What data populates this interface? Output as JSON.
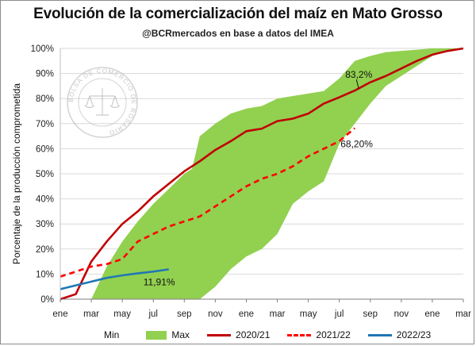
{
  "title": "Evolución de la comercialización del maíz en Mato Grosso",
  "subtitle": "@BCRmercados en base a datos del IMEA",
  "watermark": {
    "text": "BOLSA DE COMERCIO DE ROSARIO",
    "color": "#b5b5b5"
  },
  "chart_data": {
    "type": "area",
    "ylabel": "Porcentaje de la producción comprometida",
    "xlabel": "",
    "x_tick_labels": [
      "ene",
      "mar",
      "may",
      "jul",
      "sep",
      "nov",
      "ene",
      "mar",
      "may",
      "jul",
      "sep",
      "nov",
      "ene",
      "mar"
    ],
    "y_tick_labels": [
      "0%",
      "10%",
      "20%",
      "30%",
      "40%",
      "50%",
      "60%",
      "70%",
      "80%",
      "90%",
      "100%"
    ],
    "ylim": [
      0,
      100
    ],
    "xlim": [
      0,
      26
    ],
    "grid": true,
    "legend_position": "bottom",
    "series": [
      {
        "name": "Min",
        "kind": "area-lower",
        "color": "#ffffff",
        "x": [
          0,
          2,
          3,
          4,
          5,
          6,
          7,
          8,
          8.5,
          9,
          10,
          11,
          12,
          13,
          14,
          15,
          16,
          17,
          18,
          19,
          20,
          21,
          22,
          23,
          24,
          25,
          26
        ],
        "y": [
          0,
          0,
          0,
          0,
          0,
          0,
          0,
          0,
          0,
          0,
          5,
          12,
          17,
          20,
          26,
          38,
          43,
          47,
          62,
          70,
          78,
          85,
          89,
          93,
          97,
          99,
          100
        ]
      },
      {
        "name": "Max",
        "kind": "area-upper",
        "color": "#92d050",
        "x": [
          0,
          2,
          3,
          4,
          5,
          6,
          7,
          8,
          8.5,
          9,
          10,
          11,
          12,
          13,
          14,
          15,
          16,
          17,
          18,
          19,
          20,
          21,
          22,
          23,
          24,
          25,
          26
        ],
        "y": [
          0,
          0,
          13,
          23,
          31,
          38,
          44,
          50,
          52,
          65,
          70,
          74,
          76,
          77,
          80,
          81,
          82,
          83,
          88,
          95,
          97,
          98.5,
          99,
          99.5,
          100,
          100,
          100
        ]
      },
      {
        "name": "2020/21",
        "kind": "line",
        "color": "#c00000",
        "dash": "solid",
        "x": [
          0,
          1,
          2,
          3,
          4,
          5,
          6,
          7,
          8,
          9,
          10,
          11,
          12,
          13,
          14,
          15,
          16,
          17,
          18,
          19,
          20,
          21,
          22,
          23,
          24,
          25,
          26
        ],
        "y": [
          0,
          2,
          15,
          23,
          30,
          35,
          41,
          46,
          51,
          55,
          59.5,
          63,
          67,
          68,
          71,
          72,
          74,
          78,
          80.5,
          83.2,
          86.5,
          89,
          92,
          95,
          97.5,
          99,
          100
        ]
      },
      {
        "name": "2021/22",
        "kind": "line",
        "color": "#ff0000",
        "dash": "dashed",
        "x": [
          0,
          1,
          2,
          3,
          4,
          5,
          6,
          7,
          8,
          9,
          10,
          11,
          12,
          13,
          14,
          15,
          16,
          17,
          18,
          19,
          20,
          21,
          22,
          23,
          24,
          25,
          26
        ],
        "y": [
          9,
          11,
          13,
          14,
          16,
          23,
          26,
          29,
          31,
          33,
          37,
          41,
          45,
          48,
          50,
          53,
          57,
          60,
          63,
          68.2,
          null,
          null,
          null,
          null,
          null,
          null,
          null
        ]
      },
      {
        "name": "2022/23",
        "kind": "line",
        "color": "#1f77b4",
        "dash": "solid",
        "x": [
          0,
          1,
          2,
          3,
          4,
          5,
          6,
          7
        ],
        "y": [
          4,
          5.5,
          7,
          8.5,
          9.5,
          10.3,
          11,
          11.91
        ]
      }
    ],
    "annotations": [
      {
        "text": "83,2%",
        "series": "2020/21",
        "x": 19,
        "y": 83.2
      },
      {
        "text": "68,20%",
        "series": "2021/22",
        "x": 19,
        "y": 68.2
      },
      {
        "text": "11,91%",
        "series": "2022/23",
        "x": 7,
        "y": 11.91
      }
    ]
  },
  "legend": [
    {
      "label": "Min",
      "type": "fill",
      "color": "#ffffff"
    },
    {
      "label": "Max",
      "type": "fill",
      "color": "#92d050"
    },
    {
      "label": "2020/21",
      "type": "line",
      "color": "#c00000",
      "dash": "solid"
    },
    {
      "label": "2021/22",
      "type": "line",
      "color": "#ff0000",
      "dash": "dashed"
    },
    {
      "label": "2022/23",
      "type": "line",
      "color": "#1f77b4",
      "dash": "solid"
    }
  ]
}
